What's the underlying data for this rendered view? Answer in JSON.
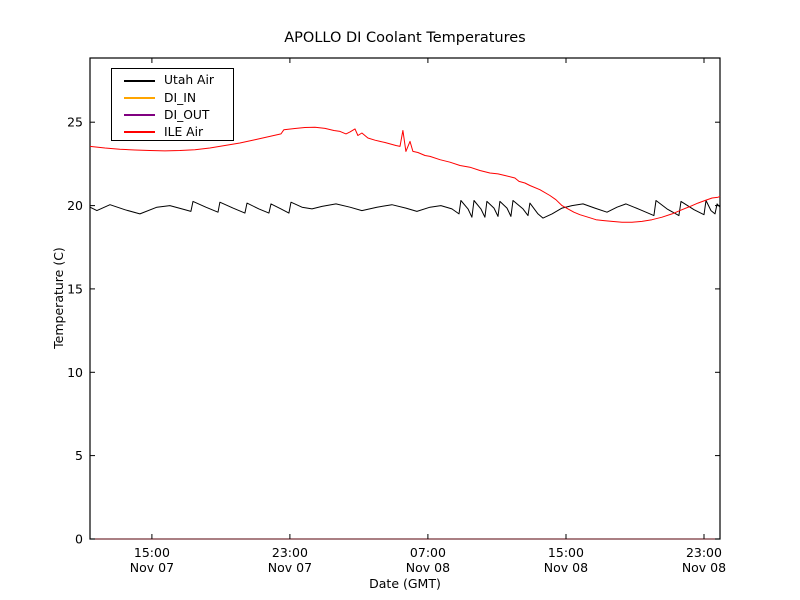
{
  "chart_data": {
    "type": "line",
    "title": "APOLLO DI Coolant Temperatures",
    "xlabel": "Date (GMT)",
    "ylabel": "Temperature (C)",
    "background_color": "#ffffff",
    "frame_color": "#000000",
    "grid": false,
    "xlim_hours": [
      11.41,
      47.93
    ],
    "ylim": [
      0,
      28.85
    ],
    "y_ticks": [
      {
        "value": 0,
        "label": "0"
      },
      {
        "value": 5,
        "label": "5"
      },
      {
        "value": 10,
        "label": "10"
      },
      {
        "value": 15,
        "label": "15"
      },
      {
        "value": 20,
        "label": "20"
      },
      {
        "value": 25,
        "label": "25"
      }
    ],
    "x_ticks": [
      {
        "hours": 15,
        "time": "15:00",
        "date": "Nov 07"
      },
      {
        "hours": 23,
        "time": "23:00",
        "date": "Nov 07"
      },
      {
        "hours": 31,
        "time": "07:00",
        "date": "Nov 08"
      },
      {
        "hours": 39,
        "time": "15:00",
        "date": "Nov 08"
      },
      {
        "hours": 47,
        "time": "23:00",
        "date": "Nov 08"
      }
    ],
    "legend": {
      "position": "upper-left",
      "entries": [
        {
          "name": "Utah Air",
          "color": "#000000"
        },
        {
          "name": "DI_IN",
          "color": "#ffa500"
        },
        {
          "name": "DI_OUT",
          "color": "#800080"
        },
        {
          "name": "ILE Air",
          "color": "#ff0000"
        }
      ]
    },
    "series": [
      {
        "name": "Utah Air",
        "color": "#000000",
        "opacity": 1,
        "points": [
          [
            11.41,
            19.9
          ],
          [
            11.81,
            19.7
          ],
          [
            12.57,
            20.05
          ],
          [
            13.43,
            19.75
          ],
          [
            14.3,
            19.5
          ],
          [
            15.29,
            19.9
          ],
          [
            16.04,
            20.0
          ],
          [
            16.74,
            19.8
          ],
          [
            17.26,
            19.65
          ],
          [
            17.38,
            20.25
          ],
          [
            18.13,
            19.9
          ],
          [
            18.83,
            19.6
          ],
          [
            18.94,
            20.2
          ],
          [
            19.7,
            19.85
          ],
          [
            20.39,
            19.55
          ],
          [
            20.51,
            20.15
          ],
          [
            21.2,
            19.8
          ],
          [
            21.78,
            19.55
          ],
          [
            21.9,
            20.1
          ],
          [
            22.48,
            19.8
          ],
          [
            22.94,
            19.55
          ],
          [
            23.06,
            20.2
          ],
          [
            23.7,
            19.9
          ],
          [
            24.28,
            19.8
          ],
          [
            24.86,
            19.95
          ],
          [
            25.67,
            20.1
          ],
          [
            26.48,
            19.9
          ],
          [
            27.17,
            19.7
          ],
          [
            28.04,
            19.9
          ],
          [
            28.91,
            20.05
          ],
          [
            29.72,
            19.85
          ],
          [
            30.36,
            19.65
          ],
          [
            31.12,
            19.9
          ],
          [
            31.75,
            20.0
          ],
          [
            32.39,
            19.8
          ],
          [
            32.8,
            19.5
          ],
          [
            32.91,
            20.3
          ],
          [
            33.32,
            19.8
          ],
          [
            33.55,
            19.3
          ],
          [
            33.67,
            20.3
          ],
          [
            34.07,
            19.8
          ],
          [
            34.3,
            19.3
          ],
          [
            34.42,
            20.25
          ],
          [
            34.83,
            19.85
          ],
          [
            35.06,
            19.35
          ],
          [
            35.17,
            20.25
          ],
          [
            35.58,
            19.85
          ],
          [
            35.81,
            19.35
          ],
          [
            35.93,
            20.3
          ],
          [
            36.51,
            19.8
          ],
          [
            36.8,
            19.4
          ],
          [
            36.91,
            20.15
          ],
          [
            37.38,
            19.5
          ],
          [
            37.67,
            19.25
          ],
          [
            38.19,
            19.5
          ],
          [
            38.77,
            19.85
          ],
          [
            39.35,
            20.0
          ],
          [
            39.99,
            20.1
          ],
          [
            40.68,
            19.85
          ],
          [
            41.38,
            19.6
          ],
          [
            41.96,
            19.9
          ],
          [
            42.48,
            20.1
          ],
          [
            43.3,
            19.75
          ],
          [
            44.1,
            19.4
          ],
          [
            44.22,
            20.3
          ],
          [
            44.86,
            19.8
          ],
          [
            45.55,
            19.4
          ],
          [
            45.67,
            20.25
          ],
          [
            46.42,
            19.75
          ],
          [
            47.0,
            19.45
          ],
          [
            47.12,
            20.3
          ],
          [
            47.41,
            19.7
          ],
          [
            47.64,
            19.5
          ],
          [
            47.76,
            20.1
          ],
          [
            47.93,
            19.9
          ]
        ]
      },
      {
        "name": "DI_IN",
        "color": "#ffa500",
        "opacity": 0.55,
        "points": [
          [
            11.41,
            0
          ],
          [
            47.93,
            0
          ]
        ]
      },
      {
        "name": "DI_OUT",
        "color": "#800080",
        "opacity": 0.45,
        "points": [
          [
            11.41,
            0
          ],
          [
            47.93,
            0
          ]
        ]
      },
      {
        "name": "ILE Air",
        "color": "#ff0000",
        "opacity": 1,
        "points": [
          [
            11.41,
            23.55
          ],
          [
            12.28,
            23.45
          ],
          [
            13.14,
            23.38
          ],
          [
            14.01,
            23.33
          ],
          [
            14.88,
            23.3
          ],
          [
            15.75,
            23.28
          ],
          [
            16.62,
            23.3
          ],
          [
            17.49,
            23.35
          ],
          [
            18.36,
            23.45
          ],
          [
            19.23,
            23.6
          ],
          [
            20.1,
            23.75
          ],
          [
            20.97,
            23.95
          ],
          [
            21.84,
            24.15
          ],
          [
            22.48,
            24.3
          ],
          [
            22.65,
            24.55
          ],
          [
            23.29,
            24.62
          ],
          [
            23.87,
            24.68
          ],
          [
            24.45,
            24.7
          ],
          [
            25.03,
            24.63
          ],
          [
            25.55,
            24.5
          ],
          [
            25.9,
            24.45
          ],
          [
            26.25,
            24.3
          ],
          [
            26.48,
            24.42
          ],
          [
            26.77,
            24.6
          ],
          [
            26.94,
            24.2
          ],
          [
            27.17,
            24.35
          ],
          [
            27.52,
            24.05
          ],
          [
            27.93,
            23.92
          ],
          [
            28.22,
            23.85
          ],
          [
            28.51,
            23.78
          ],
          [
            28.8,
            23.7
          ],
          [
            29.14,
            23.6
          ],
          [
            29.38,
            23.55
          ],
          [
            29.55,
            24.5
          ],
          [
            29.72,
            23.25
          ],
          [
            29.96,
            23.85
          ],
          [
            30.13,
            23.25
          ],
          [
            30.42,
            23.18
          ],
          [
            30.83,
            23.0
          ],
          [
            31.12,
            22.95
          ],
          [
            31.7,
            22.75
          ],
          [
            32.28,
            22.6
          ],
          [
            32.86,
            22.4
          ],
          [
            33.43,
            22.3
          ],
          [
            34.01,
            22.1
          ],
          [
            34.59,
            21.95
          ],
          [
            35.06,
            21.9
          ],
          [
            35.46,
            21.8
          ],
          [
            36.04,
            21.65
          ],
          [
            36.28,
            21.45
          ],
          [
            36.62,
            21.35
          ],
          [
            36.91,
            21.2
          ],
          [
            37.49,
            20.95
          ],
          [
            38.07,
            20.6
          ],
          [
            38.42,
            20.35
          ],
          [
            38.77,
            20.0
          ],
          [
            39.12,
            19.8
          ],
          [
            39.46,
            19.6
          ],
          [
            39.81,
            19.45
          ],
          [
            40.28,
            19.3
          ],
          [
            40.74,
            19.15
          ],
          [
            41.2,
            19.1
          ],
          [
            41.67,
            19.05
          ],
          [
            42.25,
            19.0
          ],
          [
            42.83,
            19.0
          ],
          [
            43.41,
            19.05
          ],
          [
            43.99,
            19.15
          ],
          [
            44.57,
            19.3
          ],
          [
            45.15,
            19.5
          ],
          [
            45.73,
            19.75
          ],
          [
            46.2,
            19.95
          ],
          [
            46.65,
            20.15
          ],
          [
            47.06,
            20.3
          ],
          [
            47.47,
            20.45
          ],
          [
            47.82,
            20.5
          ],
          [
            47.93,
            20.55
          ]
        ]
      }
    ]
  }
}
